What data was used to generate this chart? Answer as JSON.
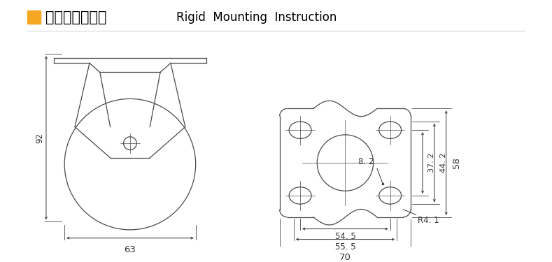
{
  "title_chinese": "定向安装尺寸图",
  "title_english": "Rigid  Mounting  Instruction",
  "orange_square_color": "#F5A623",
  "line_color": "#4a4a4a",
  "bg_color": "#ffffff",
  "dim_color": "#333333",
  "dim_fontsize": 8.5,
  "title_cn_fontsize": 15,
  "title_en_fontsize": 12,
  "left_view": {
    "width_label": "63",
    "height_label": "92"
  },
  "right_view": {
    "dims": {
      "d54_5": "54. 5",
      "d55_5": "55. 5",
      "d70": "70",
      "d37_2": "37. 2",
      "d44_2": "44. 2",
      "d58": "58",
      "d8_2": "8. 2",
      "dR4_1": "R4. 1"
    }
  }
}
